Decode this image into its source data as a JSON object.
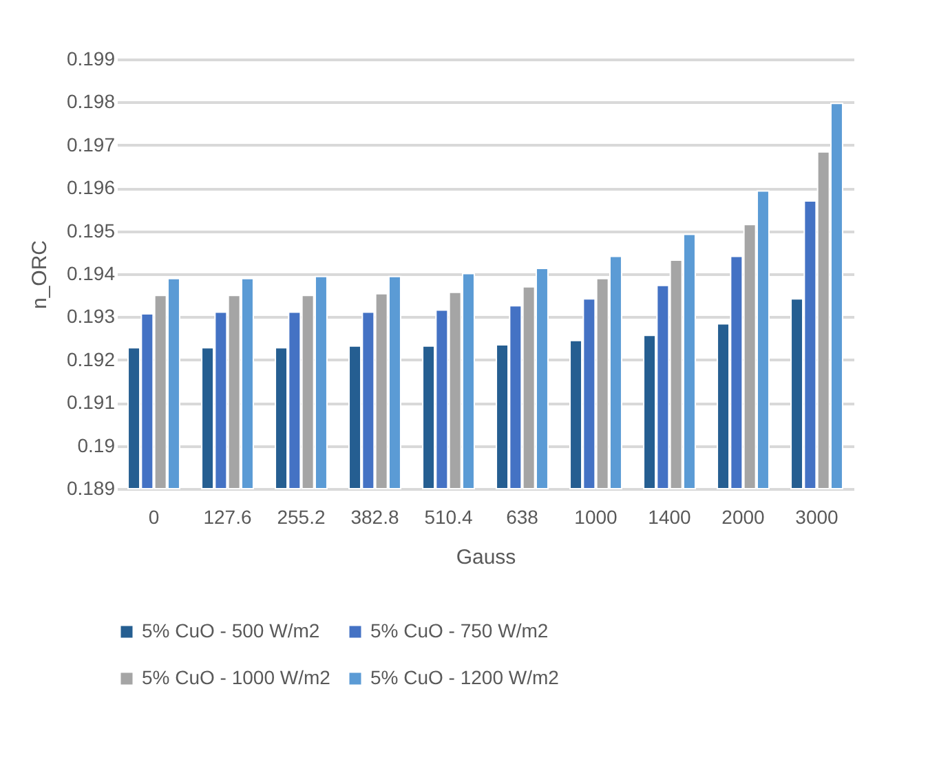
{
  "chart_data": {
    "type": "bar",
    "xlabel": "Gauss",
    "ylabel": "n_ORC",
    "categories": [
      "0",
      "127.6",
      "255.2",
      "382.8",
      "510.4",
      "638",
      "1000",
      "1400",
      "2000",
      "3000"
    ],
    "series": [
      {
        "name": "5% CuO - 500 W/m2",
        "color": "#255e91",
        "values": [
          0.19228,
          0.19228,
          0.19228,
          0.19232,
          0.19232,
          0.19235,
          0.19245,
          0.19257,
          0.19284,
          0.19342
        ]
      },
      {
        "name": "5% CuO - 750 W/m2",
        "color": "#4472c4",
        "values": [
          0.19307,
          0.19311,
          0.19311,
          0.19311,
          0.19316,
          0.19326,
          0.19342,
          0.19373,
          0.19441,
          0.1957
        ]
      },
      {
        "name": "5% CuO - 1000 W/m2",
        "color": "#a5a5a5",
        "values": [
          0.1935,
          0.1935,
          0.1935,
          0.19354,
          0.19357,
          0.1937,
          0.19389,
          0.19432,
          0.19515,
          0.19684
        ]
      },
      {
        "name": "5% CuO - 1200 W/m2",
        "color": "#5b9bd5",
        "values": [
          0.19389,
          0.19389,
          0.19394,
          0.19394,
          0.19401,
          0.19413,
          0.19441,
          0.19492,
          0.19593,
          0.19797
        ]
      }
    ],
    "ylim": [
      0.189,
      0.199
    ],
    "yticks": [
      0.189,
      0.19,
      0.191,
      0.192,
      0.193,
      0.194,
      0.195,
      0.196,
      0.197,
      0.198,
      0.199
    ],
    "grid": "y",
    "legend": "bottom"
  }
}
